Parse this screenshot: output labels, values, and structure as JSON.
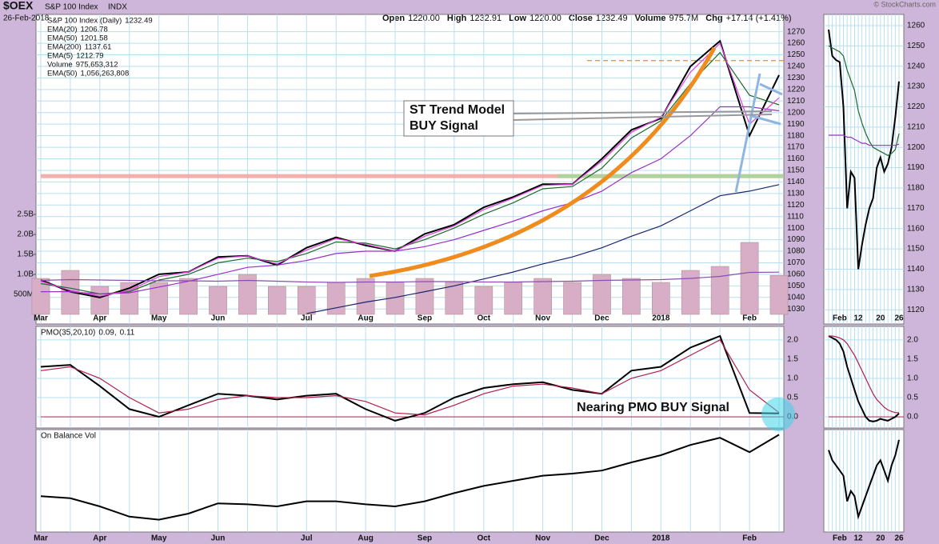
{
  "header": {
    "symbol": "$OEX",
    "name": "S&P 100 Index",
    "exchange": "INDX",
    "date": "26-Feb-2018",
    "quote": [
      [
        "Open",
        "1220.00"
      ],
      [
        "High",
        "1232.91"
      ],
      [
        "Low",
        "1220.00"
      ],
      [
        "Close",
        "1232.49"
      ],
      [
        "Volume",
        "975.7M"
      ],
      [
        "Chg",
        "+17.14 (+1.41%)"
      ]
    ],
    "credit": "© StockCharts.com"
  },
  "chart_data": [
    {
      "type": "line",
      "categories": [
        "Mar",
        null,
        "Apr",
        null,
        "May",
        null,
        "Jun",
        null,
        null,
        "Jul",
        null,
        "Aug",
        null,
        "Sep",
        null,
        "Oct",
        null,
        "Nov",
        null,
        "Dec",
        null,
        "2018",
        null,
        null,
        "Feb",
        null
      ],
      "series": [
        {
          "name": "S&P 100 Index (Daily)",
          "last_label": "1232.49",
          "color": "#000000",
          "values": [
            1055,
            1045,
            1040,
            1048,
            1060,
            1062,
            1075,
            1076,
            1068,
            1083,
            1092,
            1085,
            1080,
            1095,
            1103,
            1118,
            1127,
            1138,
            1138,
            1160,
            1185,
            1195,
            1240,
            1262,
            1180,
            1232.49
          ]
        },
        {
          "name": "EMA(20)",
          "last_label": "1206.78",
          "color": "#1e6b2a",
          "values": [
            1052,
            1048,
            1043,
            1045,
            1055,
            1060,
            1070,
            1074,
            1071,
            1078,
            1088,
            1087,
            1082,
            1090,
            1100,
            1112,
            1122,
            1134,
            1136,
            1152,
            1178,
            1193,
            1225,
            1252,
            1215,
            1206.78
          ]
        },
        {
          "name": "EMA(50)",
          "last_label": "1201.58",
          "color": "#9b30c8",
          "values": [
            1045,
            1045,
            1043,
            1044,
            1049,
            1054,
            1060,
            1066,
            1068,
            1072,
            1078,
            1080,
            1080,
            1084,
            1090,
            1098,
            1106,
            1115,
            1122,
            1132,
            1148,
            1160,
            1180,
            1205,
            1205,
            1201.58
          ]
        },
        {
          "name": "EMA(200)",
          "last_label": "1137.61",
          "color": "#1a2370",
          "values": [
            null,
            null,
            null,
            null,
            null,
            null,
            null,
            null,
            null,
            1026,
            1031,
            1036,
            1040,
            1045,
            1050,
            1056,
            1062,
            1069,
            1075,
            1083,
            1093,
            1102,
            1115,
            1128,
            1132,
            1137.61
          ]
        },
        {
          "name": "EMA(5)",
          "last_label": "1212.79",
          "color": "#e23ee0",
          "values": [
            1054,
            1046,
            1041,
            1046,
            1058,
            1062,
            1074,
            1076,
            1069,
            1081,
            1091,
            1086,
            1080,
            1093,
            1102,
            1116,
            1126,
            1137,
            1138,
            1158,
            1183,
            1196,
            1235,
            1260,
            1190,
            1212.79
          ]
        },
        {
          "name": "Volume",
          "last_label": "975,653,312",
          "color": "#d7aec6",
          "kind": "bar",
          "axis": "y2",
          "values": [
            900000000,
            1100000000,
            700000000,
            800000000,
            800000000,
            900000000,
            700000000,
            1000000000,
            700000000,
            700000000,
            800000000,
            900000000,
            800000000,
            900000000,
            800000000,
            700000000,
            800000000,
            900000000,
            800000000,
            1000000000,
            900000000,
            800000000,
            1100000000,
            1200000000,
            1800000000,
            975653312
          ]
        },
        {
          "name": "EMA(50)",
          "last_label": "1,056,263,808",
          "color": "#8a4fb0",
          "axis": "y2",
          "values": [
            850000000,
            870000000,
            860000000,
            850000000,
            840000000,
            840000000,
            830000000,
            850000000,
            830000000,
            810000000,
            800000000,
            810000000,
            810000000,
            820000000,
            820000000,
            810000000,
            810000000,
            820000000,
            830000000,
            850000000,
            860000000,
            870000000,
            900000000,
            950000000,
            1050000000,
            1056263808
          ]
        }
      ],
      "ylim": [
        1017,
        1285
      ],
      "yticks": [
        1030,
        1040,
        1050,
        1060,
        1070,
        1080,
        1090,
        1100,
        1110,
        1120,
        1130,
        1140,
        1150,
        1160,
        1170,
        1180,
        1190,
        1200,
        1210,
        1220,
        1230,
        1240,
        1250,
        1260,
        1270
      ],
      "y2lim": [
        -240000000,
        7500000000
      ],
      "y2ticks": [
        {
          "value": 500000000,
          "label": "500M"
        },
        {
          "value": 1000000000,
          "label": "1.0B"
        },
        {
          "value": 1500000000,
          "label": "1.5B"
        },
        {
          "value": 2000000000,
          "label": "2.0B"
        },
        {
          "value": 2500000000,
          "label": "2.5B"
        }
      ],
      "reference_lines": [
        {
          "value": 1245,
          "color": "#f08c1e",
          "dash": true
        },
        {
          "value": 1145,
          "color": "#f2a39c"
        },
        {
          "value": 1145,
          "color": "#a2d89c"
        }
      ],
      "annotations": [
        "ST Trend Model",
        "BUY Signal"
      ],
      "grid": true
    },
    {
      "type": "line",
      "title": "PMO(35,20,10)",
      "categories": [
        "Mar",
        null,
        "Apr",
        null,
        "May",
        null,
        "Jun",
        null,
        null,
        "Jul",
        null,
        "Aug",
        null,
        "Sep",
        null,
        "Oct",
        null,
        "Nov",
        null,
        "Dec",
        null,
        "2018",
        null,
        null,
        "Feb",
        null
      ],
      "series": [
        {
          "last_label": "0.09,",
          "color": "#000000",
          "values": [
            1.3,
            1.35,
            0.8,
            0.2,
            0.0,
            0.3,
            0.6,
            0.55,
            0.45,
            0.55,
            0.6,
            0.2,
            -0.1,
            0.1,
            0.5,
            0.75,
            0.85,
            0.9,
            0.7,
            0.6,
            1.2,
            1.3,
            1.8,
            2.1,
            0.1,
            0.09
          ]
        },
        {
          "last_label": "0.11",
          "color": "#b0204a",
          "values": [
            1.2,
            1.3,
            1.0,
            0.5,
            0.1,
            0.2,
            0.45,
            0.55,
            0.5,
            0.5,
            0.55,
            0.4,
            0.1,
            0.05,
            0.3,
            0.6,
            0.8,
            0.85,
            0.75,
            0.6,
            1.0,
            1.2,
            1.6,
            2.0,
            0.7,
            0.11
          ]
        }
      ],
      "ylim": [
        -0.29,
        2.35
      ],
      "yticks": [
        {
          "value": 0,
          "label": "0.0"
        },
        {
          "value": 0.5,
          "label": "0.5"
        },
        {
          "value": 1,
          "label": "1.0"
        },
        {
          "value": 1.5,
          "label": "1.5"
        },
        {
          "value": 2,
          "label": "2.0"
        }
      ],
      "reference_lines": [
        {
          "value": 0,
          "color": "#b0204a"
        }
      ],
      "annotations": [
        "Nearing PMO BUY Signal"
      ],
      "grid": true
    },
    {
      "type": "line",
      "title": "On Balance Vol",
      "categories": [
        "Mar",
        null,
        "Apr",
        null,
        "May",
        null,
        "Jun",
        null,
        null,
        "Jul",
        null,
        "Aug",
        null,
        "Sep",
        null,
        "Oct",
        null,
        "Nov",
        null,
        "Dec",
        null,
        "2018",
        null,
        null,
        "Feb",
        null
      ],
      "series": [
        {
          "color": "#000000",
          "values": [
            35,
            33,
            25,
            15,
            12,
            18,
            28,
            27,
            25,
            30,
            30,
            27,
            25,
            30,
            38,
            45,
            50,
            55,
            57,
            60,
            68,
            75,
            85,
            92,
            78,
            95
          ]
        }
      ],
      "ylim": [
        0,
        100
      ],
      "grid": true
    },
    {
      "type": "line",
      "categories": [
        null,
        null,
        null,
        "Feb",
        null,
        null,
        null,
        null,
        "12",
        null,
        null,
        null,
        null,
        null,
        "20",
        null,
        null,
        null,
        null,
        "26"
      ],
      "series": [
        {
          "color": "#000000",
          "values": [
            1258,
            1245,
            1243,
            1242,
            1220,
            1170,
            1188,
            1185,
            1140,
            1152,
            1162,
            1170,
            1175,
            1190,
            1195,
            1188,
            1192,
            1200,
            1215,
            1232.49
          ]
        },
        {
          "color": "#1e6b2a",
          "values": [
            1250,
            1249,
            1248,
            1247,
            1245,
            1238,
            1233,
            1228,
            1218,
            1212,
            1207,
            1203,
            1200,
            1199,
            1198,
            1197,
            1196,
            1197,
            1199,
            1206.78
          ]
        },
        {
          "color": "#9b30c8",
          "values": [
            1206,
            1206,
            1206,
            1206,
            1206,
            1205,
            1205,
            1204,
            1203,
            1202,
            1202,
            1201,
            1201,
            1201,
            1201,
            1201,
            1201,
            1201,
            1201,
            1201.58
          ]
        }
      ],
      "ylim": [
        1113,
        1265.5
      ],
      "yticks": [
        1120,
        1130,
        1140,
        1150,
        1160,
        1170,
        1180,
        1190,
        1200,
        1210,
        1220,
        1230,
        1240,
        1250,
        1260
      ],
      "grid": true
    },
    {
      "type": "line",
      "categories": [
        null,
        null,
        null,
        "Feb",
        null,
        null,
        null,
        null,
        "12",
        null,
        null,
        null,
        null,
        null,
        "20",
        null,
        null,
        null,
        null,
        "26"
      ],
      "series": [
        {
          "color": "#000000",
          "values": [
            2.1,
            2.05,
            2.0,
            1.9,
            1.7,
            1.3,
            1.0,
            0.7,
            0.4,
            0.2,
            0.0,
            -0.1,
            -0.12,
            -0.1,
            -0.05,
            -0.08,
            -0.1,
            -0.05,
            0.0,
            0.09
          ]
        },
        {
          "color": "#b0204a",
          "values": [
            2.1,
            2.1,
            2.08,
            2.05,
            2.0,
            1.9,
            1.75,
            1.6,
            1.4,
            1.2,
            1.0,
            0.8,
            0.6,
            0.45,
            0.35,
            0.25,
            0.18,
            0.14,
            0.11,
            0.11
          ]
        }
      ],
      "ylim": [
        -0.29,
        2.35
      ],
      "yticks": [
        {
          "value": 0,
          "label": "0.0"
        },
        {
          "value": 0.5,
          "label": "0.5"
        },
        {
          "value": 1,
          "label": "1.0"
        },
        {
          "value": 1.5,
          "label": "1.5"
        },
        {
          "value": 2,
          "label": "2.0"
        }
      ],
      "reference_lines": [
        {
          "value": 0,
          "color": "#b0204a"
        }
      ],
      "grid": true
    },
    {
      "type": "line",
      "categories": [
        null,
        null,
        null,
        "Feb",
        null,
        null,
        null,
        null,
        "12",
        null,
        null,
        null,
        null,
        null,
        "20",
        null,
        null,
        null,
        null,
        "26"
      ],
      "series": [
        {
          "color": "#000000",
          "values": [
            80,
            70,
            65,
            60,
            55,
            30,
            40,
            35,
            15,
            25,
            35,
            45,
            55,
            65,
            70,
            60,
            50,
            65,
            75,
            90
          ]
        }
      ],
      "ylim": [
        0,
        100
      ],
      "grid": true
    }
  ]
}
